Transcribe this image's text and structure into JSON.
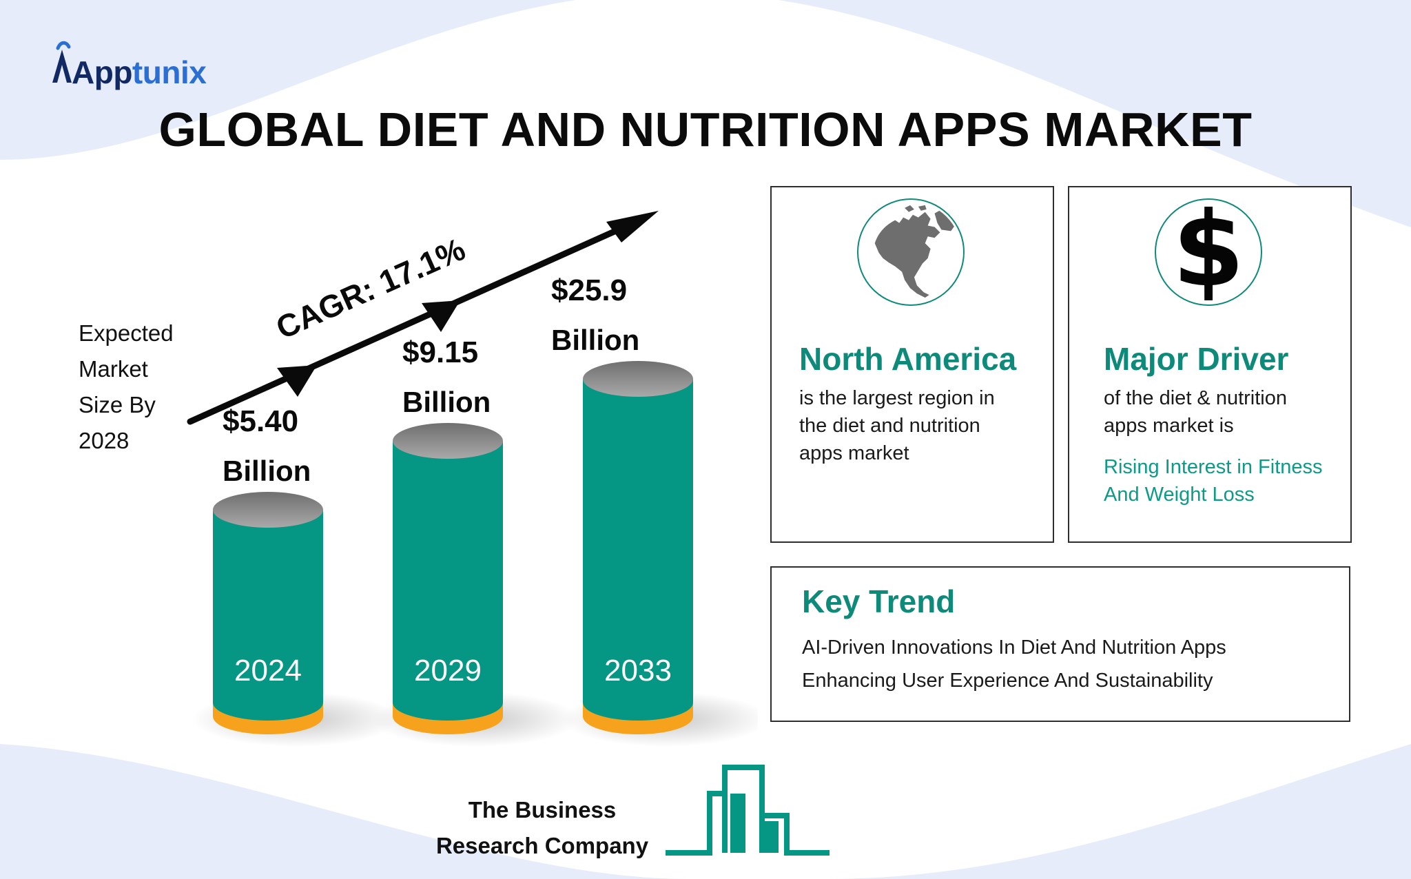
{
  "brand": {
    "logo_part1": "App",
    "logo_part2": "tunix"
  },
  "title": "GLOBAL DIET AND NUTRITION APPS MARKET",
  "chart_data": {
    "type": "bar",
    "categories": [
      "2024",
      "2029",
      "2033"
    ],
    "values": [
      5.4,
      9.15,
      25.9
    ],
    "value_labels": [
      "$5.40",
      "$9.15",
      "$25.9"
    ],
    "unit_label": "Billion",
    "annotation": "CAGR:  17.1%",
    "side_label": [
      "Expected",
      "Market",
      "Size By",
      "2028"
    ],
    "colors": {
      "bar": "#069784",
      "bar_top": "#8d8d8d",
      "bar_base": "#f6a21c",
      "arrow": "#0a0a0a"
    }
  },
  "cards": {
    "region": {
      "icon": "north-america-globe-icon",
      "title": "North America",
      "text": [
        "is the largest region in",
        "the diet and nutrition",
        "apps market"
      ]
    },
    "driver": {
      "icon": "dollar-icon",
      "icon_glyph": "$",
      "title": "Major Driver",
      "text": [
        "of the diet & nutrition",
        "apps market is"
      ],
      "highlight": [
        "Rising Interest in Fitness",
        "And Weight Loss"
      ]
    },
    "trend": {
      "title": "Key Trend",
      "text": [
        "AI-Driven Innovations In Diet And Nutrition Apps",
        "Enhancing User Experience And Sustainability"
      ]
    }
  },
  "source": {
    "line1": "The Business",
    "line2": "Research Company"
  },
  "colors": {
    "accent": "#0d8a79",
    "background_wave": "#e7ecfb",
    "logo_dark": "#122a63",
    "logo_light": "#2b6fd3"
  }
}
